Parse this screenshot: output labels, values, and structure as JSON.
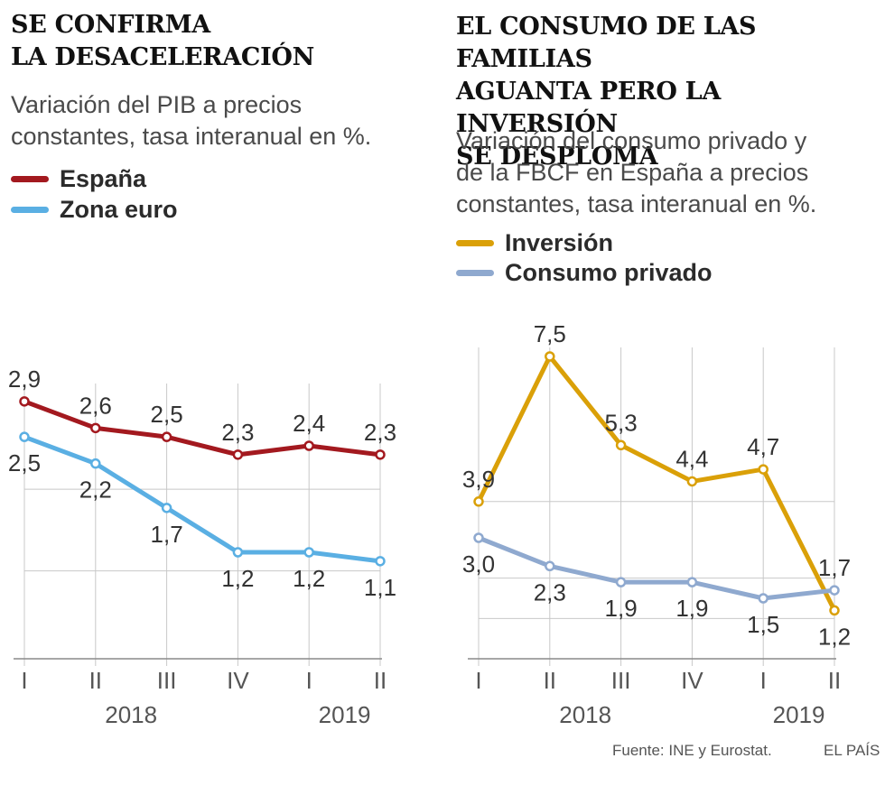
{
  "footer": {
    "source": "Fuente: INE y Eurostat.",
    "brand": "EL PAÍS"
  },
  "chart_data": [
    {
      "type": "line",
      "title_lines": [
        "SE CONFIRMA",
        "LA DESACELERACIÓN"
      ],
      "subtitle_lines": [
        "Variación del PIB a precios",
        "constantes, tasa interanual en %."
      ],
      "categories": [
        "I",
        "II",
        "III",
        "IV",
        "I",
        "II"
      ],
      "years": [
        {
          "label": "2018",
          "center": 1.5
        },
        {
          "label": "2019",
          "center": 4.5
        }
      ],
      "ylim": [
        0.0,
        3.0
      ],
      "gridlines": [
        0.99,
        1.91
      ],
      "series": [
        {
          "name": "España",
          "color": "#a3191f",
          "values": [
            2.9,
            2.6,
            2.5,
            2.3,
            2.4,
            2.3
          ],
          "label_values": [
            "2,9",
            "2,6",
            "2,5",
            "2,3",
            "2,4",
            "2,3"
          ],
          "label_pos": [
            "above",
            "above",
            "above",
            "above",
            "above",
            "above"
          ]
        },
        {
          "name": "Zona euro",
          "color": "#5aafe3",
          "values": [
            2.5,
            2.2,
            1.7,
            1.2,
            1.2,
            1.1
          ],
          "label_values": [
            "2,5",
            "2,2",
            "1,7",
            "1,2",
            "1,2",
            "1,1"
          ],
          "label_pos": [
            "below",
            "below",
            "below",
            "below",
            "below",
            "below"
          ]
        }
      ]
    },
    {
      "type": "line",
      "title_lines": [
        "EL CONSUMO DE LAS FAMILIAS",
        "AGUANTA PERO LA INVERSIÓN",
        "SE DESPLOMA"
      ],
      "subtitle_lines": [
        "Variación del consumo privado y",
        "de la FBCF en España a precios",
        "constantes, tasa interanual en %."
      ],
      "categories": [
        "I",
        "II",
        "III",
        "IV",
        "I",
        "II"
      ],
      "years": [
        {
          "label": "2018",
          "center": 1.5
        },
        {
          "label": "2019",
          "center": 4.5
        }
      ],
      "ylim": [
        0.0,
        7.5
      ],
      "gridlines": [
        1.0,
        2.0,
        3.9
      ],
      "series": [
        {
          "name": "Inversión",
          "color": "#daa008",
          "values": [
            3.9,
            7.5,
            5.3,
            4.4,
            4.7,
            1.2
          ],
          "label_values": [
            "3,9",
            "7,5",
            "5,3",
            "4,4",
            "4,7",
            "1,2"
          ],
          "label_pos": [
            "above",
            "above",
            "above",
            "above",
            "above",
            "below"
          ]
        },
        {
          "name": "Consumo privado",
          "color": "#8fa9cf",
          "values": [
            3.0,
            2.3,
            1.9,
            1.9,
            1.5,
            1.7
          ],
          "label_values": [
            "3,0",
            "2,3",
            "1,9",
            "1,9",
            "1,5",
            "1,7"
          ],
          "label_pos": [
            "below",
            "below",
            "below",
            "below",
            "below",
            "above"
          ]
        }
      ]
    }
  ]
}
